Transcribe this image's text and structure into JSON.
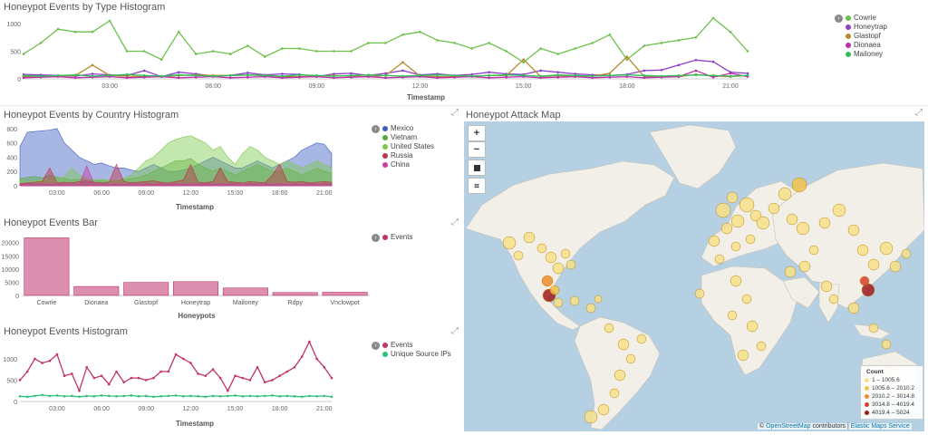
{
  "panels": {
    "type_hist": {
      "title": "Honeypot Events by Type Histogram",
      "xlabel": "Timestamp",
      "xticks": [
        "03:00",
        "06:00",
        "09:00",
        "12:00",
        "15:00",
        "18:00",
        "21:00"
      ],
      "yticks": [
        "1000",
        "500",
        "0"
      ],
      "legend": [
        {
          "name": "Cowrie",
          "color": "#6bc14a"
        },
        {
          "name": "Honeytrap",
          "color": "#8e3fc9"
        },
        {
          "name": "Glastopf",
          "color": "#b88a2e"
        },
        {
          "name": "Dionaea",
          "color": "#c02da8"
        },
        {
          "name": "Mailoney",
          "color": "#2fbf5d"
        }
      ]
    },
    "country_hist": {
      "title": "Honeypot Events by Country Histogram",
      "xlabel": "Timestamp",
      "xticks": [
        "03:00",
        "06:00",
        "09:00",
        "12:00",
        "15:00",
        "18:00",
        "21:00"
      ],
      "yticks": [
        "800",
        "600",
        "400",
        "200",
        "0"
      ],
      "legend": [
        {
          "name": "Mexico",
          "color": "#3f5ec2"
        },
        {
          "name": "Vietnam",
          "color": "#56a83c"
        },
        {
          "name": "United States",
          "color": "#7cc84d"
        },
        {
          "name": "Russia",
          "color": "#c0334d"
        },
        {
          "name": "China",
          "color": "#cc3aa5"
        }
      ]
    },
    "bar": {
      "title": "Honeypot Events Bar",
      "xlabel": "Honeypots",
      "yticks": [
        "20000",
        "15000",
        "10000",
        "5000",
        "0"
      ],
      "legend": [
        {
          "name": "Events",
          "color": "#c0336b"
        }
      ]
    },
    "events_hist": {
      "title": "Honeypot Events Histogram",
      "xlabel": "Timestamp",
      "xticks": [
        "03:00",
        "06:00",
        "09:00",
        "12:00",
        "15:00",
        "18:00",
        "21:00"
      ],
      "yticks": [
        "1000",
        "500",
        "0"
      ],
      "legend": [
        {
          "name": "Events",
          "color": "#c0336b"
        },
        {
          "name": "Unique Source IPs",
          "color": "#2fbf7d"
        }
      ]
    },
    "map": {
      "title": "Honeypot Attack Map",
      "zoom_in": "+",
      "zoom_out": "−",
      "legend_title": "Count",
      "legend": [
        {
          "label": "1 – 1005.6",
          "color": "#f7e08a"
        },
        {
          "label": "1005.6 – 2010.2",
          "color": "#f5c24d"
        },
        {
          "label": "2010.2 – 3014.8",
          "color": "#f08b2f"
        },
        {
          "label": "3014.8 – 4019.4",
          "color": "#d9402a"
        },
        {
          "label": "4019.4 – 5024",
          "color": "#a01b1b"
        }
      ],
      "attribution_prefix": "© ",
      "attribution_osm": "OpenStreetMap",
      "attribution_mid": " contributors | ",
      "attribution_ems": "Elastic Maps Service"
    }
  },
  "chart_data": [
    {
      "type": "line",
      "title": "Honeypot Events by Type Histogram",
      "xlabel": "Timestamp",
      "x": [
        "00:30",
        "01:00",
        "01:30",
        "02:00",
        "02:30",
        "03:00",
        "03:30",
        "04:00",
        "04:30",
        "05:00",
        "05:30",
        "06:00",
        "06:30",
        "07:00",
        "07:30",
        "08:00",
        "08:30",
        "09:00",
        "09:30",
        "10:00",
        "10:30",
        "11:00",
        "11:30",
        "12:00",
        "12:30",
        "13:00",
        "13:30",
        "14:00",
        "14:30",
        "15:00",
        "15:30",
        "16:00",
        "16:30",
        "17:00",
        "17:30",
        "18:00",
        "18:30",
        "19:00",
        "19:30",
        "20:00",
        "20:30",
        "21:00",
        "21:30"
      ],
      "ylim": [
        0,
        1100
      ],
      "series": [
        {
          "name": "Cowrie",
          "values": [
            450,
            650,
            900,
            850,
            850,
            1050,
            500,
            500,
            350,
            850,
            450,
            500,
            450,
            600,
            400,
            550,
            550,
            500,
            500,
            500,
            650,
            650,
            800,
            850,
            700,
            650,
            550,
            650,
            500,
            300,
            550,
            450,
            550,
            650,
            800,
            350,
            600,
            650,
            700,
            750,
            1100,
            850,
            500
          ]
        },
        {
          "name": "Honeytrap",
          "values": [
            80,
            70,
            60,
            50,
            90,
            70,
            60,
            150,
            40,
            120,
            90,
            50,
            60,
            110,
            70,
            90,
            80,
            40,
            90,
            100,
            60,
            100,
            150,
            70,
            90,
            60,
            80,
            120,
            90,
            80,
            150,
            120,
            90,
            70,
            60,
            80,
            150,
            160,
            250,
            340,
            310,
            120,
            100
          ]
        },
        {
          "name": "Glastopf",
          "values": [
            40,
            50,
            50,
            60,
            250,
            60,
            50,
            40,
            40,
            60,
            70,
            60,
            60,
            70,
            60,
            40,
            40,
            50,
            60,
            50,
            40,
            60,
            300,
            50,
            40,
            40,
            50,
            60,
            60,
            350,
            40,
            60,
            40,
            50,
            100,
            400,
            40,
            50,
            40,
            80,
            50,
            40,
            60
          ]
        },
        {
          "name": "Dionaea",
          "values": [
            20,
            30,
            40,
            20,
            30,
            40,
            20,
            30,
            40,
            20,
            30,
            40,
            20,
            30,
            40,
            20,
            30,
            40,
            20,
            30,
            40,
            20,
            30,
            40,
            20,
            30,
            40,
            20,
            30,
            40,
            20,
            30,
            40,
            20,
            30,
            40,
            20,
            30,
            40,
            150,
            30,
            100,
            40
          ]
        },
        {
          "name": "Mailoney",
          "values": [
            60,
            50,
            60,
            70,
            50,
            60,
            80,
            60,
            50,
            70,
            60,
            50,
            60,
            70,
            60,
            50,
            70,
            60,
            50,
            60,
            70,
            60,
            50,
            60,
            70,
            60,
            50,
            60,
            70,
            60,
            50,
            70,
            60,
            50,
            60,
            70,
            60,
            50,
            60,
            70,
            60,
            50,
            60
          ]
        }
      ]
    },
    {
      "type": "area",
      "title": "Honeypot Events by Country Histogram",
      "xlabel": "Timestamp",
      "x": [
        "00:30",
        "01:00",
        "01:30",
        "02:00",
        "02:30",
        "03:00",
        "03:30",
        "04:00",
        "04:30",
        "05:00",
        "05:30",
        "06:00",
        "06:30",
        "07:00",
        "07:30",
        "08:00",
        "08:30",
        "09:00",
        "09:30",
        "10:00",
        "10:30",
        "11:00",
        "11:30",
        "12:00",
        "12:30",
        "13:00",
        "13:30",
        "14:00",
        "14:30",
        "15:00",
        "15:30",
        "16:00",
        "16:30",
        "17:00",
        "17:30",
        "18:00",
        "18:30",
        "19:00",
        "19:30",
        "20:00",
        "20:30",
        "21:00",
        "21:30"
      ],
      "ylim": [
        0,
        850
      ],
      "series": [
        {
          "name": "Mexico",
          "values": [
            550,
            750,
            760,
            770,
            780,
            800,
            600,
            500,
            400,
            350,
            300,
            320,
            280,
            250,
            250,
            220,
            200,
            250,
            300,
            250,
            200,
            200,
            220,
            250,
            300,
            350,
            400,
            350,
            300,
            250,
            250,
            300,
            350,
            300,
            250,
            300,
            350,
            400,
            500,
            550,
            600,
            580,
            450
          ]
        },
        {
          "name": "Vietnam",
          "values": [
            100,
            120,
            130,
            110,
            150,
            120,
            100,
            80,
            90,
            100,
            80,
            70,
            60,
            70,
            80,
            100,
            120,
            150,
            200,
            250,
            300,
            350,
            350,
            380,
            300,
            250,
            200,
            250,
            200,
            150,
            200,
            250,
            300,
            250,
            200,
            200,
            250,
            200,
            150,
            200,
            250,
            200,
            180
          ]
        },
        {
          "name": "United States",
          "values": [
            80,
            60,
            70,
            80,
            90,
            100,
            120,
            250,
            150,
            100,
            80,
            90,
            80,
            70,
            100,
            150,
            250,
            350,
            400,
            500,
            600,
            650,
            680,
            700,
            650,
            600,
            500,
            550,
            400,
            300,
            450,
            550,
            500,
            400,
            350,
            300,
            350,
            300,
            250,
            300,
            350,
            300,
            250
          ]
        },
        {
          "name": "Russia",
          "values": [
            30,
            40,
            50,
            60,
            250,
            40,
            50,
            40,
            60,
            70,
            50,
            40,
            50,
            300,
            60,
            40,
            50,
            60,
            70,
            50,
            40,
            60,
            80,
            300,
            50,
            40,
            60,
            250,
            60,
            50,
            40,
            60,
            50,
            40,
            150,
            300,
            60,
            50,
            60,
            40,
            50,
            60,
            50
          ]
        },
        {
          "name": "China",
          "values": [
            20,
            30,
            20,
            30,
            20,
            30,
            20,
            30,
            20,
            280,
            20,
            30,
            20,
            30,
            20,
            30,
            20,
            30,
            20,
            30,
            20,
            30,
            20,
            30,
            20,
            30,
            20,
            30,
            20,
            30,
            20,
            30,
            20,
            30,
            20,
            30,
            20,
            30,
            20,
            30,
            20,
            30,
            20
          ]
        }
      ]
    },
    {
      "type": "bar",
      "title": "Honeypot Events Bar",
      "xlabel": "Honeypots",
      "categories": [
        "Cowrie",
        "Dionaea",
        "Glastopf",
        "Honeytrap",
        "Mailoney",
        "Rdpy",
        "Vnclowpot"
      ],
      "ylim": [
        0,
        24000
      ],
      "series": [
        {
          "name": "Events",
          "values": [
            21800,
            3400,
            4900,
            5200,
            2800,
            1100,
            1200
          ]
        }
      ]
    },
    {
      "type": "line",
      "title": "Honeypot Events Histogram",
      "xlabel": "Timestamp",
      "x": [
        "00:30",
        "01:00",
        "01:30",
        "02:00",
        "02:30",
        "03:00",
        "03:30",
        "04:00",
        "04:30",
        "05:00",
        "05:30",
        "06:00",
        "06:30",
        "07:00",
        "07:30",
        "08:00",
        "08:30",
        "09:00",
        "09:30",
        "10:00",
        "10:30",
        "11:00",
        "11:30",
        "12:00",
        "12:30",
        "13:00",
        "13:30",
        "14:00",
        "14:30",
        "15:00",
        "15:30",
        "16:00",
        "16:30",
        "17:00",
        "17:30",
        "18:00",
        "18:30",
        "19:00",
        "19:30",
        "20:00",
        "20:30",
        "21:00",
        "21:30"
      ],
      "ylim": [
        0,
        1400
      ],
      "series": [
        {
          "name": "Events",
          "values": [
            500,
            700,
            1000,
            900,
            950,
            1100,
            600,
            650,
            250,
            800,
            550,
            600,
            400,
            700,
            450,
            550,
            550,
            500,
            550,
            700,
            700,
            1100,
            1000,
            900,
            650,
            600,
            750,
            550,
            250,
            600,
            550,
            500,
            800,
            450,
            500,
            600,
            700,
            800,
            1050,
            1400,
            1000,
            800,
            550
          ]
        },
        {
          "name": "Unique Source IPs",
          "values": [
            120,
            110,
            130,
            150,
            130,
            140,
            120,
            130,
            110,
            130,
            120,
            140,
            130,
            120,
            130,
            140,
            120,
            130,
            110,
            120,
            130,
            140,
            120,
            130,
            120,
            110,
            130,
            120,
            130,
            140,
            120,
            130,
            120,
            130,
            140,
            120,
            130,
            120,
            110,
            130,
            120,
            130,
            110
          ]
        }
      ]
    }
  ]
}
